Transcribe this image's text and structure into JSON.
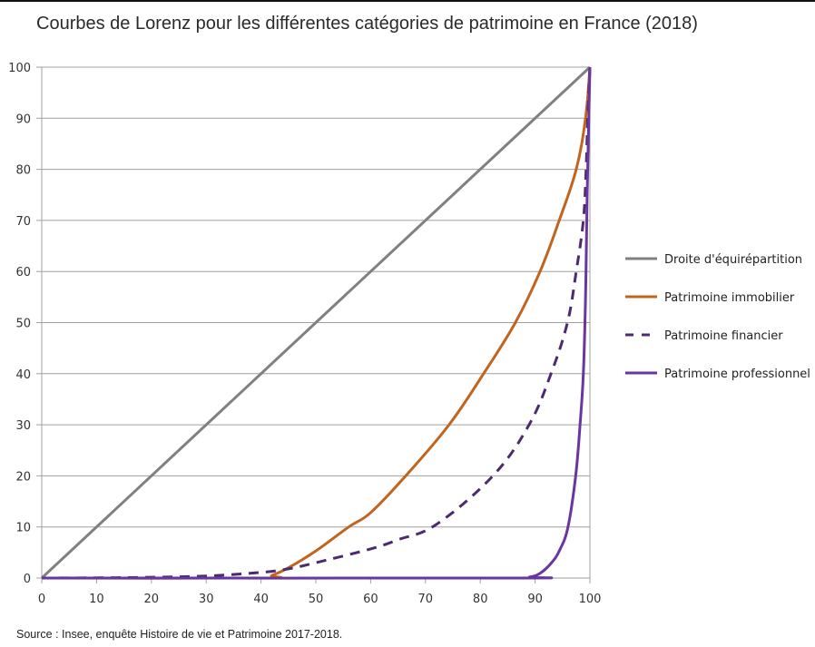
{
  "chart_data": {
    "type": "line",
    "title": "Courbes de Lorenz pour les différentes catégories de patrimoine en France (2018)",
    "xlabel": "",
    "ylabel": "",
    "xlim": [
      0,
      100
    ],
    "ylim": [
      0,
      100
    ],
    "xticks": [
      0,
      10,
      20,
      30,
      40,
      50,
      60,
      70,
      80,
      90,
      100
    ],
    "yticks": [
      0,
      10,
      20,
      30,
      40,
      50,
      60,
      70,
      80,
      90,
      100
    ],
    "grid": "horizontal",
    "legend_position": "right",
    "series": [
      {
        "name": "Droite d'équirépartition",
        "color": "#808080",
        "style": "solid",
        "x": [
          0,
          100
        ],
        "y": [
          0,
          100
        ]
      },
      {
        "name": "Patrimoine immobilier",
        "color": "#C0641E",
        "style": "solid",
        "x": [
          0,
          40,
          42,
          45,
          50,
          56,
          60,
          66.4,
          74.3,
          80.6,
          86.4,
          90.9,
          94.4,
          97.5,
          99.2,
          100
        ],
        "y": [
          0,
          0,
          0.5,
          2.0,
          5.3,
          10,
          12.8,
          20,
          30,
          40,
          50,
          60,
          70,
          80,
          90,
          100
        ]
      },
      {
        "name": "Patrimoine financier",
        "color": "#4B2A6E",
        "style": "dashed",
        "x": [
          0,
          10,
          20,
          30,
          40,
          45,
          50,
          60,
          65,
          72,
          82.3,
          88.9,
          92.9,
          95.9,
          97.5,
          98.8,
          99.3,
          99.6,
          100
        ],
        "y": [
          0,
          0.05,
          0.15,
          0.4,
          1.1,
          1.8,
          3.0,
          5.7,
          7.5,
          10.5,
          20,
          30,
          40,
          50,
          60,
          70,
          80,
          90,
          100
        ]
      },
      {
        "name": "Patrimoine professionnel",
        "color": "#6A35A0",
        "style": "solid",
        "x": [
          0,
          85,
          89,
          91,
          93,
          94.5,
          96.0,
          97.4,
          98.2,
          98.8,
          99.2,
          99.5,
          100
        ],
        "y": [
          0,
          0,
          0.2,
          1.0,
          3.0,
          5.5,
          10,
          20,
          30,
          40,
          55,
          75,
          100
        ]
      }
    ]
  },
  "source": "Source : Insee, enquête Histoire de vie et Patrimoine 2017-2018."
}
